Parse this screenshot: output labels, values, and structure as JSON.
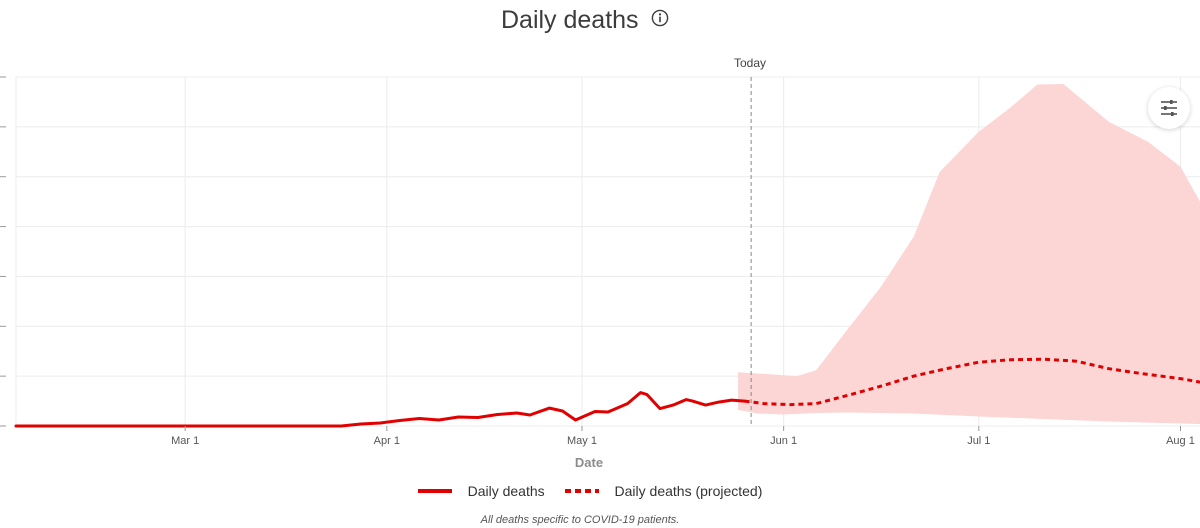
{
  "title": "Daily deaths",
  "today_label": "Today",
  "footnote": "All deaths specific to COVID-19 patients.",
  "icons": {
    "info": "info-icon",
    "settings": "sliders-settings-icon"
  },
  "colors": {
    "line": "#e00000",
    "band": "#fcd5d5",
    "grid": "#ececec",
    "today_line": "#888888"
  },
  "legend": [
    {
      "label": "Daily deaths",
      "style": "solid"
    },
    {
      "label": "Daily deaths (projected)",
      "style": "dashed"
    }
  ],
  "chart_data": {
    "type": "line",
    "title": "Daily deaths",
    "xlabel": "Date",
    "ylabel": "",
    "x_range": [
      "2020-02-04",
      "2020-08-04"
    ],
    "x_ticks": [
      {
        "date": "2020-03-01",
        "label": "Mar 1"
      },
      {
        "date": "2020-04-01",
        "label": "Apr 1"
      },
      {
        "date": "2020-05-01",
        "label": "May 1"
      },
      {
        "date": "2020-06-01",
        "label": "Jun 1"
      },
      {
        "date": "2020-07-01",
        "label": "Jul 1"
      },
      {
        "date": "2020-08-01",
        "label": "Aug 1"
      }
    ],
    "ylim": [
      0,
      70
    ],
    "y_grid": [
      0,
      10,
      20,
      30,
      40,
      50,
      60,
      70
    ],
    "grid": true,
    "legend_position": "bottom",
    "today": "2020-05-27",
    "series": [
      {
        "name": "Daily deaths",
        "style": "solid",
        "points": [
          [
            "2020-02-04",
            0
          ],
          [
            "2020-03-25",
            0
          ],
          [
            "2020-03-28",
            0.4
          ],
          [
            "2020-03-31",
            0.6
          ],
          [
            "2020-04-03",
            1.1
          ],
          [
            "2020-04-06",
            1.5
          ],
          [
            "2020-04-09",
            1.2
          ],
          [
            "2020-04-12",
            1.8
          ],
          [
            "2020-04-15",
            1.7
          ],
          [
            "2020-04-18",
            2.3
          ],
          [
            "2020-04-21",
            2.6
          ],
          [
            "2020-04-23",
            2.2
          ],
          [
            "2020-04-26",
            3.6
          ],
          [
            "2020-04-28",
            3.0
          ],
          [
            "2020-04-30",
            1.2
          ],
          [
            "2020-05-03",
            2.9
          ],
          [
            "2020-05-05",
            2.8
          ],
          [
            "2020-05-08",
            4.5
          ],
          [
            "2020-05-10",
            6.7
          ],
          [
            "2020-05-11",
            6.3
          ],
          [
            "2020-05-13",
            3.5
          ],
          [
            "2020-05-15",
            4.2
          ],
          [
            "2020-05-17",
            5.3
          ],
          [
            "2020-05-18",
            5.0
          ],
          [
            "2020-05-20",
            4.2
          ],
          [
            "2020-05-22",
            4.8
          ],
          [
            "2020-05-24",
            5.2
          ],
          [
            "2020-05-26",
            5.0
          ]
        ]
      },
      {
        "name": "Daily deaths (projected)",
        "style": "dashed",
        "points": [
          [
            "2020-05-26",
            5.0
          ],
          [
            "2020-05-29",
            4.5
          ],
          [
            "2020-06-02",
            4.3
          ],
          [
            "2020-06-06",
            4.5
          ],
          [
            "2020-06-11",
            6.2
          ],
          [
            "2020-06-16",
            8.0
          ],
          [
            "2020-06-21",
            10.0
          ],
          [
            "2020-06-26",
            11.5
          ],
          [
            "2020-07-01",
            12.8
          ],
          [
            "2020-07-06",
            13.3
          ],
          [
            "2020-07-11",
            13.4
          ],
          [
            "2020-07-16",
            13.0
          ],
          [
            "2020-07-21",
            11.5
          ],
          [
            "2020-07-26",
            10.5
          ],
          [
            "2020-08-01",
            9.5
          ],
          [
            "2020-08-04",
            8.8
          ]
        ]
      }
    ],
    "uncertainty_band": {
      "series": "Daily deaths (projected)",
      "upper": [
        [
          "2020-05-25",
          10.8
        ],
        [
          "2020-06-03",
          10.0
        ],
        [
          "2020-06-06",
          11.2
        ],
        [
          "2020-06-10",
          18
        ],
        [
          "2020-06-16",
          28
        ],
        [
          "2020-06-21",
          38
        ],
        [
          "2020-06-25",
          51
        ],
        [
          "2020-07-01",
          59
        ],
        [
          "2020-07-06",
          64
        ],
        [
          "2020-07-10",
          68.5
        ],
        [
          "2020-07-14",
          68.6
        ],
        [
          "2020-07-21",
          61
        ],
        [
          "2020-07-27",
          57
        ],
        [
          "2020-08-01",
          52
        ],
        [
          "2020-08-04",
          45
        ]
      ],
      "lower": [
        [
          "2020-08-04",
          0.4
        ],
        [
          "2020-08-01",
          0.5
        ],
        [
          "2020-07-21",
          0.9
        ],
        [
          "2020-07-11",
          1.4
        ],
        [
          "2020-07-01",
          1.9
        ],
        [
          "2020-06-21",
          2.5
        ],
        [
          "2020-06-11",
          2.7
        ],
        [
          "2020-06-06",
          2.6
        ],
        [
          "2020-06-01",
          2.3
        ],
        [
          "2020-05-28",
          2.5
        ],
        [
          "2020-05-26",
          3.0
        ],
        [
          "2020-05-25",
          3.2
        ]
      ]
    }
  }
}
